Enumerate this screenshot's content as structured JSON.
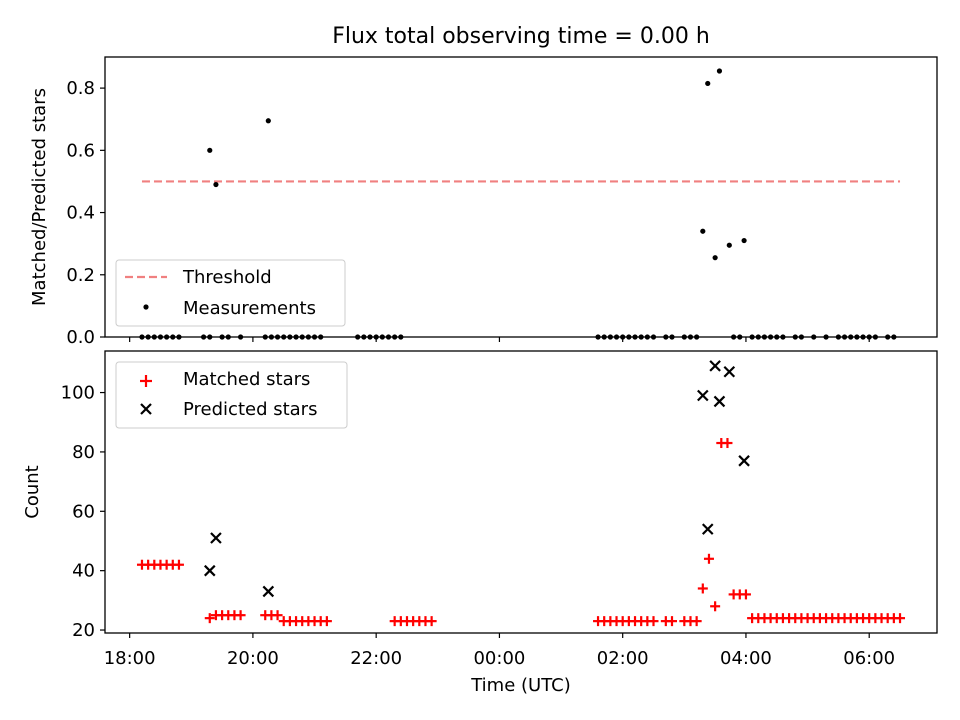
{
  "chart_data": [
    {
      "type": "scatter",
      "title": "Flux total observing time = 0.00 h",
      "xlabel": "",
      "ylabel": "Matched/Predicted stars",
      "x_unit": "hours relative to 00:00 UTC",
      "xlim": [
        -6.4,
        7.1
      ],
      "ylim": [
        0,
        0.9
      ],
      "yticks": [
        "0.0",
        "0.2",
        "0.4",
        "0.6",
        "0.8"
      ],
      "grid": false,
      "legend_position": "lower-left",
      "legend": [
        "Threshold",
        "Measurements"
      ],
      "threshold": {
        "name": "Threshold",
        "y": 0.5,
        "x_start": -5.8,
        "x_end": 6.5,
        "color": "#f08080",
        "style": "dashed"
      },
      "series": [
        {
          "name": "Measurements",
          "color": "#000000",
          "marker": "dot",
          "points": [
            [
              -4.7,
              0.6
            ],
            [
              -4.6,
              0.49
            ],
            [
              -3.75,
              0.695
            ],
            [
              3.3,
              0.34
            ],
            [
              3.38,
              0.815
            ],
            [
              3.5,
              0.255
            ],
            [
              3.57,
              0.855
            ],
            [
              3.73,
              0.295
            ],
            [
              3.97,
              0.31
            ],
            [
              -5.8,
              0
            ],
            [
              -5.7,
              0
            ],
            [
              -5.6,
              0
            ],
            [
              -5.5,
              0
            ],
            [
              -5.4,
              0
            ],
            [
              -5.3,
              0
            ],
            [
              -5.2,
              0
            ],
            [
              -4.8,
              0
            ],
            [
              -4.7,
              0
            ],
            [
              -4.5,
              0
            ],
            [
              -4.4,
              0
            ],
            [
              -4.2,
              0
            ],
            [
              -3.8,
              0
            ],
            [
              -3.7,
              0
            ],
            [
              -3.6,
              0
            ],
            [
              -3.5,
              0
            ],
            [
              -3.4,
              0
            ],
            [
              -3.3,
              0
            ],
            [
              -3.2,
              0
            ],
            [
              -3.1,
              0
            ],
            [
              -3.0,
              0
            ],
            [
              -2.9,
              0
            ],
            [
              -2.3,
              0
            ],
            [
              -2.2,
              0
            ],
            [
              -2.1,
              0
            ],
            [
              -2.0,
              0
            ],
            [
              -1.9,
              0
            ],
            [
              -1.8,
              0
            ],
            [
              -1.7,
              0
            ],
            [
              -1.6,
              0
            ],
            [
              1.6,
              0
            ],
            [
              1.7,
              0
            ],
            [
              1.8,
              0
            ],
            [
              1.9,
              0
            ],
            [
              2.0,
              0
            ],
            [
              2.1,
              0
            ],
            [
              2.2,
              0
            ],
            [
              2.3,
              0
            ],
            [
              2.4,
              0
            ],
            [
              2.5,
              0
            ],
            [
              2.7,
              0
            ],
            [
              2.8,
              0
            ],
            [
              3.0,
              0
            ],
            [
              3.1,
              0
            ],
            [
              3.2,
              0
            ],
            [
              3.8,
              0
            ],
            [
              3.9,
              0
            ],
            [
              4.1,
              0
            ],
            [
              4.2,
              0
            ],
            [
              4.3,
              0
            ],
            [
              4.4,
              0
            ],
            [
              4.5,
              0
            ],
            [
              4.6,
              0
            ],
            [
              4.8,
              0
            ],
            [
              4.9,
              0
            ],
            [
              5.1,
              0
            ],
            [
              5.3,
              0
            ],
            [
              5.5,
              0
            ],
            [
              5.6,
              0
            ],
            [
              5.7,
              0
            ],
            [
              5.8,
              0
            ],
            [
              5.9,
              0
            ],
            [
              6.0,
              0
            ],
            [
              6.1,
              0
            ],
            [
              6.3,
              0
            ],
            [
              6.4,
              0
            ]
          ]
        }
      ]
    },
    {
      "type": "scatter",
      "title": "",
      "xlabel": "Time (UTC)",
      "ylabel": "Count",
      "x_unit": "hours relative to 00:00 UTC",
      "xlim": [
        -6.4,
        7.1
      ],
      "ylim": [
        19,
        114
      ],
      "yticks": [
        "20",
        "40",
        "60",
        "80",
        "100"
      ],
      "xticks": [
        "18:00",
        "20:00",
        "22:00",
        "00:00",
        "02:00",
        "04:00",
        "06:00"
      ],
      "grid": false,
      "legend_position": "upper-left",
      "legend": [
        "Matched stars",
        "Predicted stars"
      ],
      "series": [
        {
          "name": "Matched stars",
          "color": "#ff0000",
          "marker": "plus",
          "points": [
            [
              -5.8,
              42
            ],
            [
              -5.7,
              42
            ],
            [
              -5.6,
              42
            ],
            [
              -5.5,
              42
            ],
            [
              -5.4,
              42
            ],
            [
              -5.3,
              42
            ],
            [
              -5.2,
              42
            ],
            [
              -4.7,
              24
            ],
            [
              -4.6,
              25
            ],
            [
              -4.5,
              25
            ],
            [
              -4.4,
              25
            ],
            [
              -4.3,
              25
            ],
            [
              -4.2,
              25
            ],
            [
              -3.8,
              25
            ],
            [
              -3.7,
              25
            ],
            [
              -3.6,
              25
            ],
            [
              -3.5,
              23
            ],
            [
              -3.4,
              23
            ],
            [
              -3.3,
              23
            ],
            [
              -3.2,
              23
            ],
            [
              -3.1,
              23
            ],
            [
              -3.0,
              23
            ],
            [
              -2.9,
              23
            ],
            [
              -2.8,
              23
            ],
            [
              -1.7,
              23
            ],
            [
              -1.6,
              23
            ],
            [
              -1.5,
              23
            ],
            [
              -1.4,
              23
            ],
            [
              -1.3,
              23
            ],
            [
              -1.2,
              23
            ],
            [
              -1.1,
              23
            ],
            [
              1.6,
              23
            ],
            [
              1.7,
              23
            ],
            [
              1.8,
              23
            ],
            [
              1.9,
              23
            ],
            [
              2.0,
              23
            ],
            [
              2.1,
              23
            ],
            [
              2.2,
              23
            ],
            [
              2.3,
              23
            ],
            [
              2.4,
              23
            ],
            [
              2.5,
              23
            ],
            [
              2.7,
              23
            ],
            [
              2.8,
              23
            ],
            [
              3.0,
              23
            ],
            [
              3.1,
              23
            ],
            [
              3.2,
              23
            ],
            [
              3.3,
              34
            ],
            [
              3.4,
              44
            ],
            [
              3.5,
              28
            ],
            [
              3.6,
              83
            ],
            [
              3.7,
              83
            ],
            [
              3.8,
              32
            ],
            [
              3.9,
              32
            ],
            [
              4.0,
              32
            ],
            [
              4.1,
              24
            ],
            [
              4.2,
              24
            ],
            [
              4.3,
              24
            ],
            [
              4.4,
              24
            ],
            [
              4.5,
              24
            ],
            [
              4.6,
              24
            ],
            [
              4.7,
              24
            ],
            [
              4.8,
              24
            ],
            [
              4.9,
              24
            ],
            [
              5.0,
              24
            ],
            [
              5.1,
              24
            ],
            [
              5.2,
              24
            ],
            [
              5.3,
              24
            ],
            [
              5.4,
              24
            ],
            [
              5.5,
              24
            ],
            [
              5.6,
              24
            ],
            [
              5.7,
              24
            ],
            [
              5.8,
              24
            ],
            [
              5.9,
              24
            ],
            [
              6.0,
              24
            ],
            [
              6.1,
              24
            ],
            [
              6.2,
              24
            ],
            [
              6.3,
              24
            ],
            [
              6.4,
              24
            ],
            [
              6.5,
              24
            ]
          ]
        },
        {
          "name": "Predicted stars",
          "color": "#000000",
          "marker": "x",
          "points": [
            [
              -4.7,
              40
            ],
            [
              -4.6,
              51
            ],
            [
              -3.75,
              33
            ],
            [
              3.3,
              99
            ],
            [
              3.38,
              54
            ],
            [
              3.5,
              109
            ],
            [
              3.57,
              97
            ],
            [
              3.73,
              107
            ],
            [
              3.97,
              77
            ]
          ]
        }
      ]
    }
  ]
}
